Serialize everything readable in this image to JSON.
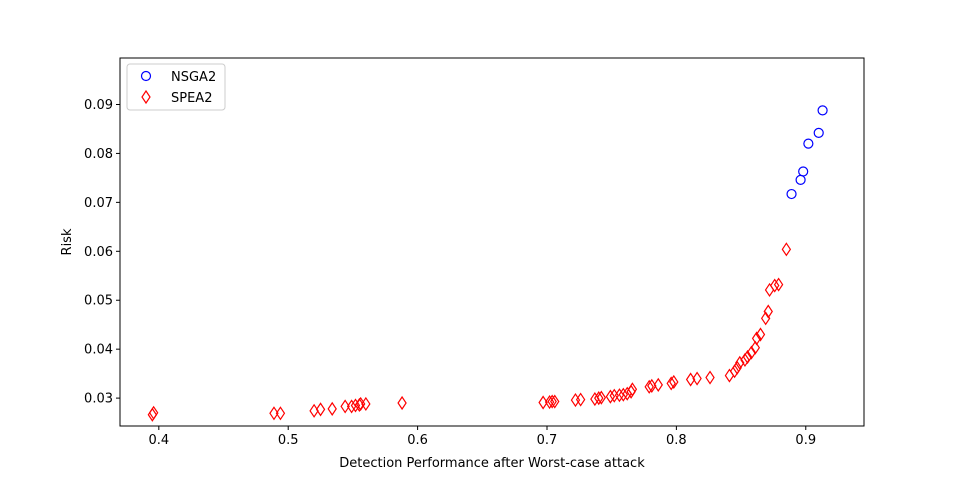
{
  "chart_data": {
    "type": "scatter",
    "xlabel": "Detection Performance after Worst-case attack",
    "ylabel": "Risk",
    "xlim": [
      0.37,
      0.945
    ],
    "ylim": [
      0.0243,
      0.0995
    ],
    "xticks": [
      0.4,
      0.5,
      0.6,
      0.7,
      0.8,
      0.9
    ],
    "xtick_labels": [
      "0.4",
      "0.5",
      "0.6",
      "0.7",
      "0.8",
      "0.9"
    ],
    "yticks": [
      0.03,
      0.04,
      0.05,
      0.06,
      0.07,
      0.08,
      0.09
    ],
    "ytick_labels": [
      "0.03",
      "0.04",
      "0.05",
      "0.06",
      "0.07",
      "0.08",
      "0.09"
    ],
    "grid": false,
    "legend_position": "top-left",
    "series": [
      {
        "name": "NSGA2",
        "marker": "circle",
        "color": "#0000ff",
        "points": [
          [
            0.889,
            0.0717
          ],
          [
            0.896,
            0.0746
          ],
          [
            0.898,
            0.0763
          ],
          [
            0.902,
            0.082
          ],
          [
            0.91,
            0.0842
          ],
          [
            0.913,
            0.0888
          ]
        ]
      },
      {
        "name": "SPEA2",
        "marker": "diamond",
        "color": "#ff0000",
        "points": [
          [
            0.395,
            0.0266
          ],
          [
            0.396,
            0.027
          ],
          [
            0.489,
            0.0269
          ],
          [
            0.494,
            0.0269
          ],
          [
            0.52,
            0.0274
          ],
          [
            0.525,
            0.0277
          ],
          [
            0.534,
            0.0278
          ],
          [
            0.544,
            0.0283
          ],
          [
            0.549,
            0.0283
          ],
          [
            0.552,
            0.0285
          ],
          [
            0.555,
            0.0286
          ],
          [
            0.556,
            0.0288
          ],
          [
            0.56,
            0.0288
          ],
          [
            0.588,
            0.029
          ],
          [
            0.697,
            0.0291
          ],
          [
            0.702,
            0.0292
          ],
          [
            0.704,
            0.0293
          ],
          [
            0.706,
            0.0293
          ],
          [
            0.722,
            0.0296
          ],
          [
            0.726,
            0.0297
          ],
          [
            0.737,
            0.0298
          ],
          [
            0.74,
            0.03
          ],
          [
            0.742,
            0.0301
          ],
          [
            0.749,
            0.0303
          ],
          [
            0.752,
            0.0305
          ],
          [
            0.756,
            0.0306
          ],
          [
            0.759,
            0.0307
          ],
          [
            0.762,
            0.0309
          ],
          [
            0.765,
            0.0313
          ],
          [
            0.766,
            0.0318
          ],
          [
            0.779,
            0.0323
          ],
          [
            0.781,
            0.0325
          ],
          [
            0.786,
            0.0327
          ],
          [
            0.796,
            0.033
          ],
          [
            0.798,
            0.0333
          ],
          [
            0.811,
            0.0338
          ],
          [
            0.816,
            0.034
          ],
          [
            0.826,
            0.0342
          ],
          [
            0.841,
            0.0346
          ],
          [
            0.845,
            0.0355
          ],
          [
            0.847,
            0.0362
          ],
          [
            0.849,
            0.0372
          ],
          [
            0.853,
            0.0378
          ],
          [
            0.855,
            0.0384
          ],
          [
            0.858,
            0.0393
          ],
          [
            0.861,
            0.0403
          ],
          [
            0.862,
            0.0422
          ],
          [
            0.865,
            0.043
          ],
          [
            0.869,
            0.0463
          ],
          [
            0.871,
            0.0477
          ],
          [
            0.872,
            0.0521
          ],
          [
            0.876,
            0.053
          ],
          [
            0.879,
            0.0532
          ],
          [
            0.885,
            0.0604
          ]
        ]
      }
    ]
  }
}
